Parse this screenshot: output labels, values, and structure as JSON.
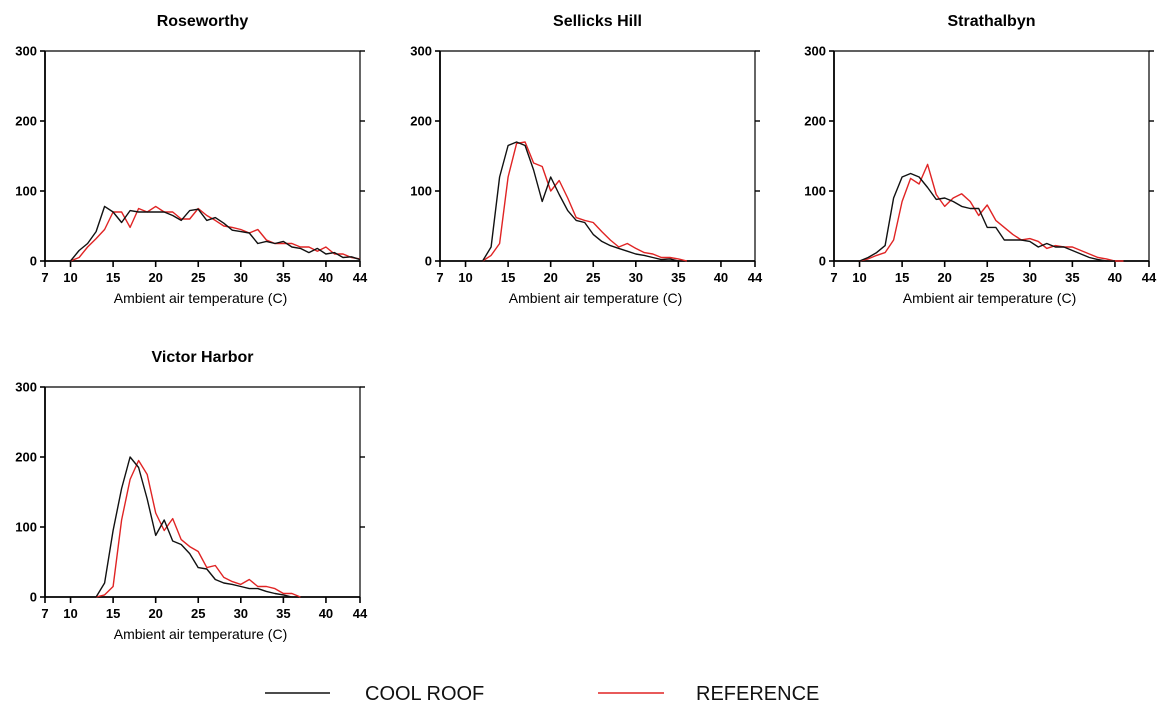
{
  "colors": {
    "cool_roof": "#111111",
    "reference": "#e02424",
    "axis": "#000000"
  },
  "legend": {
    "items": [
      {
        "label": "COOL ROOF",
        "color": "#111111"
      },
      {
        "label": "REFERENCE",
        "color": "#e02424"
      }
    ]
  },
  "chart_data": [
    {
      "type": "line",
      "title": "Roseworthy",
      "xlabel": "Ambient air temperature (C)",
      "ylabel": "",
      "xlim": [
        7,
        44
      ],
      "ylim": [
        0,
        300
      ],
      "xticks": [
        7,
        10,
        15,
        20,
        25,
        30,
        35,
        40,
        44
      ],
      "yticks": [
        0,
        100,
        200,
        300
      ],
      "series": [
        {
          "name": "COOL ROOF",
          "color": "#111111",
          "x": [
            10,
            11,
            12,
            13,
            14,
            15,
            16,
            17,
            18,
            19,
            20,
            21,
            22,
            23,
            24,
            25,
            26,
            27,
            28,
            29,
            30,
            31,
            32,
            33,
            34,
            35,
            36,
            37,
            38,
            39,
            40,
            41,
            42,
            43,
            44
          ],
          "y": [
            0,
            15,
            25,
            42,
            78,
            70,
            55,
            72,
            70,
            70,
            70,
            70,
            65,
            58,
            72,
            74,
            58,
            62,
            54,
            44,
            42,
            40,
            25,
            28,
            25,
            28,
            20,
            18,
            12,
            18,
            10,
            12,
            5,
            6,
            2
          ]
        },
        {
          "name": "REFERENCE",
          "color": "#e02424",
          "x": [
            10,
            11,
            12,
            13,
            14,
            15,
            16,
            17,
            18,
            19,
            20,
            21,
            22,
            23,
            24,
            25,
            26,
            27,
            28,
            29,
            30,
            31,
            32,
            33,
            34,
            35,
            36,
            37,
            38,
            39,
            40,
            41,
            42,
            43,
            44
          ],
          "y": [
            0,
            5,
            20,
            32,
            45,
            70,
            70,
            48,
            75,
            70,
            78,
            70,
            70,
            60,
            60,
            75,
            65,
            58,
            50,
            48,
            45,
            40,
            45,
            30,
            25,
            25,
            25,
            20,
            20,
            14,
            20,
            10,
            10,
            5,
            3
          ]
        }
      ]
    },
    {
      "type": "line",
      "title": "Sellicks Hill",
      "xlabel": "Ambient air temperature (C)",
      "ylabel": "",
      "xlim": [
        7,
        44
      ],
      "ylim": [
        0,
        300
      ],
      "xticks": [
        7,
        10,
        15,
        20,
        25,
        30,
        35,
        40,
        44
      ],
      "yticks": [
        0,
        100,
        200,
        300
      ],
      "series": [
        {
          "name": "COOL ROOF",
          "color": "#111111",
          "x": [
            12,
            13,
            14,
            15,
            16,
            17,
            18,
            19,
            20,
            21,
            22,
            23,
            24,
            25,
            26,
            27,
            28,
            29,
            30,
            31,
            32,
            33,
            34,
            35
          ],
          "y": [
            0,
            20,
            120,
            165,
            170,
            165,
            130,
            85,
            120,
            95,
            72,
            58,
            55,
            38,
            28,
            22,
            18,
            14,
            10,
            8,
            5,
            2,
            3,
            0
          ]
        },
        {
          "name": "REFERENCE",
          "color": "#e02424",
          "x": [
            12,
            13,
            14,
            15,
            16,
            17,
            18,
            19,
            20,
            21,
            22,
            23,
            24,
            25,
            26,
            27,
            28,
            29,
            30,
            31,
            32,
            33,
            34,
            35,
            36
          ],
          "y": [
            0,
            8,
            25,
            120,
            168,
            170,
            140,
            135,
            100,
            115,
            90,
            62,
            58,
            55,
            42,
            30,
            20,
            25,
            18,
            12,
            10,
            5,
            5,
            3,
            0
          ]
        }
      ]
    },
    {
      "type": "line",
      "title": "Strathalbyn",
      "xlabel": "Ambient air temperature (C)",
      "ylabel": "",
      "xlim": [
        7,
        44
      ],
      "ylim": [
        0,
        300
      ],
      "xticks": [
        7,
        10,
        15,
        20,
        25,
        30,
        35,
        40,
        44
      ],
      "yticks": [
        0,
        100,
        200,
        300
      ],
      "series": [
        {
          "name": "COOL ROOF",
          "color": "#111111",
          "x": [
            10,
            11,
            12,
            13,
            14,
            15,
            16,
            17,
            18,
            19,
            20,
            21,
            22,
            23,
            24,
            25,
            26,
            27,
            28,
            29,
            30,
            31,
            32,
            33,
            34,
            35,
            36,
            37,
            38,
            39,
            40
          ],
          "y": [
            0,
            5,
            12,
            22,
            90,
            120,
            125,
            120,
            105,
            88,
            90,
            85,
            78,
            75,
            75,
            48,
            48,
            30,
            30,
            30,
            28,
            20,
            25,
            20,
            20,
            15,
            10,
            5,
            2,
            0,
            0
          ]
        },
        {
          "name": "REFERENCE",
          "color": "#e02424",
          "x": [
            10,
            11,
            12,
            13,
            14,
            15,
            16,
            17,
            18,
            19,
            20,
            21,
            22,
            23,
            24,
            25,
            26,
            27,
            28,
            29,
            30,
            31,
            32,
            33,
            34,
            35,
            36,
            37,
            38,
            39,
            40,
            41
          ],
          "y": [
            0,
            3,
            8,
            12,
            30,
            85,
            118,
            110,
            138,
            95,
            78,
            90,
            96,
            85,
            65,
            80,
            58,
            48,
            38,
            30,
            32,
            28,
            18,
            22,
            20,
            20,
            15,
            10,
            5,
            3,
            0,
            0
          ]
        }
      ]
    },
    {
      "type": "line",
      "title": "Victor Harbor",
      "xlabel": "Ambient air temperature (C)",
      "ylabel": "",
      "xlim": [
        7,
        44
      ],
      "ylim": [
        0,
        300
      ],
      "xticks": [
        7,
        10,
        15,
        20,
        25,
        30,
        35,
        40,
        44
      ],
      "yticks": [
        0,
        100,
        200,
        300
      ],
      "series": [
        {
          "name": "COOL ROOF",
          "color": "#111111",
          "x": [
            13,
            14,
            15,
            16,
            17,
            18,
            19,
            20,
            21,
            22,
            23,
            24,
            25,
            26,
            27,
            28,
            29,
            30,
            31,
            32,
            33,
            34,
            35,
            36
          ],
          "y": [
            0,
            20,
            95,
            155,
            200,
            185,
            140,
            88,
            110,
            80,
            75,
            62,
            42,
            40,
            25,
            20,
            18,
            15,
            12,
            12,
            8,
            5,
            3,
            0
          ]
        },
        {
          "name": "REFERENCE",
          "color": "#e02424",
          "x": [
            13,
            14,
            15,
            16,
            17,
            18,
            19,
            20,
            21,
            22,
            23,
            24,
            25,
            26,
            27,
            28,
            29,
            30,
            31,
            32,
            33,
            34,
            35,
            36,
            37
          ],
          "y": [
            0,
            3,
            15,
            110,
            168,
            195,
            175,
            120,
            95,
            112,
            82,
            72,
            65,
            42,
            45,
            28,
            22,
            18,
            25,
            15,
            15,
            12,
            5,
            5,
            0
          ]
        }
      ]
    }
  ]
}
